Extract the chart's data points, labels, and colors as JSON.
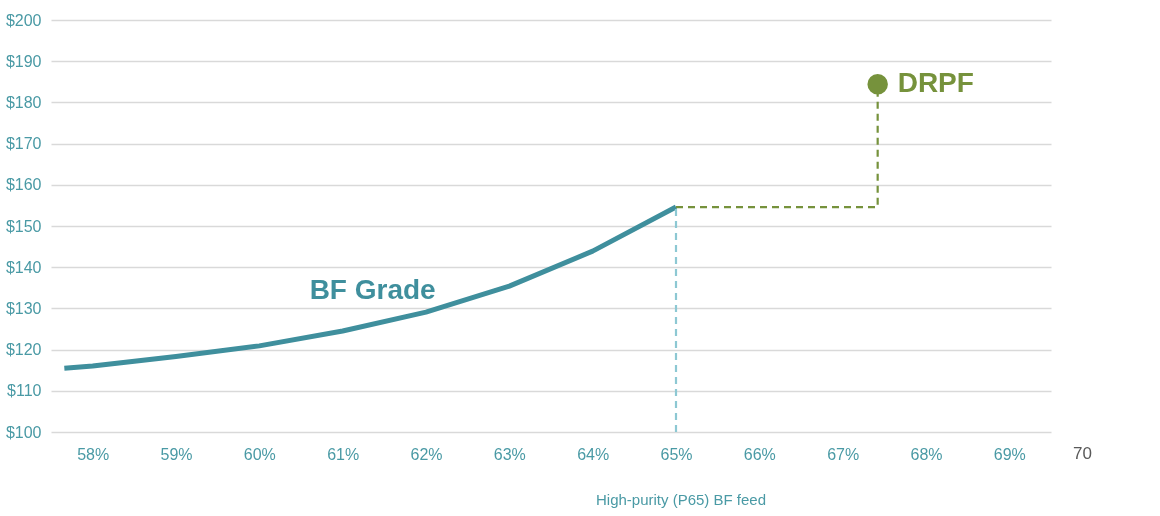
{
  "chart_data": {
    "type": "line",
    "xlabel": "High-purity (P65) BF feed",
    "xlim": [
      57.5,
      69.5
    ],
    "ylim": [
      100,
      200
    ],
    "xticks": [
      {
        "value": 58,
        "label": "58%"
      },
      {
        "value": 59,
        "label": "59%"
      },
      {
        "value": 60,
        "label": "60%"
      },
      {
        "value": 61,
        "label": "61%"
      },
      {
        "value": 62,
        "label": "62%"
      },
      {
        "value": 63,
        "label": "63%"
      },
      {
        "value": 64,
        "label": "64%"
      },
      {
        "value": 65,
        "label": "65%"
      },
      {
        "value": 66,
        "label": "66%"
      },
      {
        "value": 67,
        "label": "67%"
      },
      {
        "value": 68,
        "label": "68%"
      },
      {
        "value": 69,
        "label": "69%"
      }
    ],
    "yticks": [
      {
        "value": 100,
        "label": "$100"
      },
      {
        "value": 110,
        "label": "$110"
      },
      {
        "value": 120,
        "label": "$120"
      },
      {
        "value": 130,
        "label": "$130"
      },
      {
        "value": 140,
        "label": "$140"
      },
      {
        "value": 150,
        "label": "$150"
      },
      {
        "value": 160,
        "label": "$160"
      },
      {
        "value": 170,
        "label": "$170"
      },
      {
        "value": 180,
        "label": "$180"
      },
      {
        "value": 190,
        "label": "$190"
      },
      {
        "value": 200,
        "label": "$200"
      }
    ],
    "grid": "y",
    "legend": false,
    "annotations": [
      "70"
    ],
    "series": [
      {
        "name": "BF Grade",
        "line_style": "solid",
        "color": "#3f8f9d",
        "x": [
          57.66,
          58,
          59,
          60,
          61,
          62,
          63,
          64,
          65
        ],
        "values": [
          115.5,
          116.0,
          118.3,
          120.9,
          124.5,
          129.1,
          135.4,
          143.9,
          154.6
        ]
      },
      {
        "line_style": "dashed",
        "color": "#8dc8d3",
        "x": [
          65,
          65
        ],
        "values": [
          100,
          154.6
        ]
      },
      {
        "line_style": "dashed",
        "color": "#76923c",
        "x": [
          65,
          67.42,
          67.42
        ],
        "values": [
          154.6,
          154.6,
          184
        ]
      },
      {
        "name": "DRPF",
        "type": "scatter",
        "marker": "circle",
        "color": "#76923c",
        "x": [
          67.42
        ],
        "values": [
          184.4
        ]
      }
    ]
  }
}
